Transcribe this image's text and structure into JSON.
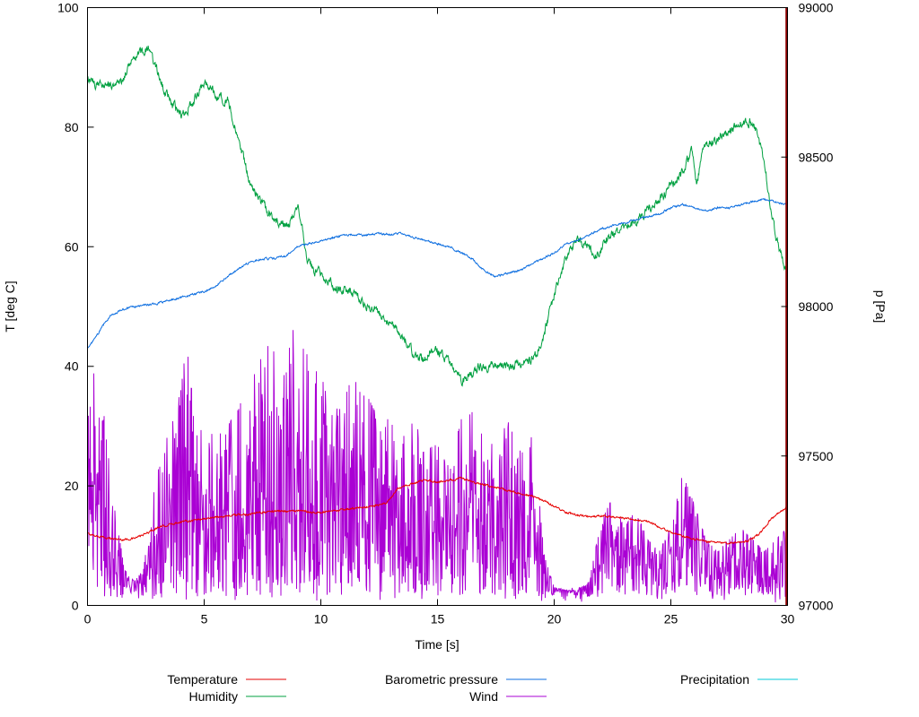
{
  "chart_data": {
    "type": "line",
    "title": "",
    "xlabel": "Time [s]",
    "ylabel_left": "T [deg C]",
    "ylabel_right": "p [Pa]",
    "x_range": [
      0,
      30
    ],
    "y_left_range": [
      0,
      100
    ],
    "y_right_range": [
      97000,
      99000
    ],
    "x_ticks": [
      0,
      5,
      10,
      15,
      20,
      25,
      30
    ],
    "y_left_ticks": [
      0,
      20,
      40,
      60,
      80,
      100
    ],
    "y_right_ticks": [
      97000,
      97500,
      98000,
      98500,
      99000
    ],
    "grid": false,
    "legend_position": "bottom",
    "event_line": {
      "x": 29.95,
      "color": "#8b0000"
    },
    "series": [
      {
        "name": "Temperature",
        "color": "#e60000",
        "axis": "left",
        "style": "line",
        "noise": 0.3,
        "anchors": [
          [
            0,
            12
          ],
          [
            0.5,
            11.5
          ],
          [
            1,
            11.2
          ],
          [
            1.5,
            11
          ],
          [
            2,
            11.2
          ],
          [
            2.5,
            12
          ],
          [
            3,
            13
          ],
          [
            3.5,
            13.5
          ],
          [
            4,
            14
          ],
          [
            5,
            14.5
          ],
          [
            6,
            15
          ],
          [
            7,
            15.3
          ],
          [
            8,
            15.8
          ],
          [
            9,
            15.8
          ],
          [
            10,
            15.5
          ],
          [
            11,
            16
          ],
          [
            12,
            16.5
          ],
          [
            12.8,
            17
          ],
          [
            13.3,
            19.5
          ],
          [
            14,
            20.5
          ],
          [
            14.5,
            21
          ],
          [
            15,
            20.6
          ],
          [
            15.6,
            21
          ],
          [
            16,
            21.3
          ],
          [
            16.5,
            20.6
          ],
          [
            17,
            20.2
          ],
          [
            17.5,
            19.7
          ],
          [
            18,
            19.2
          ],
          [
            18.5,
            18.8
          ],
          [
            19,
            18.3
          ],
          [
            19.5,
            17.6
          ],
          [
            20,
            16.6
          ],
          [
            20.5,
            15.6
          ],
          [
            21,
            15.1
          ],
          [
            21.5,
            14.8
          ],
          [
            22,
            15
          ],
          [
            23,
            14.6
          ],
          [
            24,
            14
          ],
          [
            24.5,
            13.2
          ],
          [
            25,
            12.2
          ],
          [
            25.5,
            11.6
          ],
          [
            26,
            11.1
          ],
          [
            26.5,
            10.7
          ],
          [
            27,
            10.5
          ],
          [
            27.8,
            10.5
          ],
          [
            28.3,
            10.8
          ],
          [
            28.8,
            12
          ],
          [
            29.2,
            14
          ],
          [
            29.6,
            15.5
          ],
          [
            30,
            16.5
          ]
        ]
      },
      {
        "name": "Humidity",
        "color": "#00a040",
        "axis": "left",
        "style": "line",
        "noise": 1.4,
        "anchors": [
          [
            0,
            88
          ],
          [
            0.4,
            87
          ],
          [
            0.8,
            87.5
          ],
          [
            1.2,
            87
          ],
          [
            1.6,
            88.5
          ],
          [
            1.9,
            92
          ],
          [
            2.3,
            92.5
          ],
          [
            2.6,
            93
          ],
          [
            2.9,
            90.5
          ],
          [
            3.2,
            87
          ],
          [
            3.6,
            84
          ],
          [
            4,
            82
          ],
          [
            4.4,
            83.5
          ],
          [
            4.8,
            86
          ],
          [
            5,
            87.5
          ],
          [
            5.3,
            86.5
          ],
          [
            5.6,
            85
          ],
          [
            6,
            84.5
          ],
          [
            6.3,
            80
          ],
          [
            6.6,
            76
          ],
          [
            7,
            70
          ],
          [
            7.4,
            67.5
          ],
          [
            7.8,
            65.5
          ],
          [
            8.2,
            64
          ],
          [
            8.6,
            63.5
          ],
          [
            9,
            67
          ],
          [
            9.2,
            64
          ],
          [
            9.4,
            58
          ],
          [
            9.7,
            56
          ],
          [
            10,
            55.5
          ],
          [
            10.4,
            54
          ],
          [
            10.8,
            52.5
          ],
          [
            11.2,
            53
          ],
          [
            11.6,
            51.5
          ],
          [
            12,
            50
          ],
          [
            12.4,
            49.5
          ],
          [
            12.8,
            47.5
          ],
          [
            13.2,
            46.5
          ],
          [
            13.6,
            44.5
          ],
          [
            14,
            42
          ],
          [
            14.4,
            41
          ],
          [
            14.8,
            43
          ],
          [
            15.2,
            42
          ],
          [
            15.6,
            40.5
          ],
          [
            16,
            37.5
          ],
          [
            16.4,
            38.5
          ],
          [
            16.8,
            40
          ],
          [
            17.4,
            40
          ],
          [
            18,
            40
          ],
          [
            18.6,
            40.5
          ],
          [
            19,
            41
          ],
          [
            19.4,
            43
          ],
          [
            19.8,
            49
          ],
          [
            20.2,
            55
          ],
          [
            20.6,
            59
          ],
          [
            21,
            61.5
          ],
          [
            21.4,
            60
          ],
          [
            21.8,
            58.5
          ],
          [
            22.2,
            61
          ],
          [
            22.6,
            62.5
          ],
          [
            23,
            63
          ],
          [
            23.5,
            64
          ],
          [
            24,
            66
          ],
          [
            24.5,
            68
          ],
          [
            25,
            70
          ],
          [
            25.5,
            72.5
          ],
          [
            25.9,
            76
          ],
          [
            26.1,
            70
          ],
          [
            26.4,
            76.5
          ],
          [
            26.8,
            77.5
          ],
          [
            27.2,
            78.5
          ],
          [
            27.6,
            79.5
          ],
          [
            28,
            80.5
          ],
          [
            28.4,
            81
          ],
          [
            28.7,
            79
          ],
          [
            29,
            74
          ],
          [
            29.3,
            66
          ],
          [
            29.6,
            60
          ],
          [
            30,
            55.5
          ]
        ]
      },
      {
        "name": "Barometric pressure",
        "color": "#0d6ee0",
        "axis": "right",
        "style": "line",
        "noise": 6,
        "anchors": [
          [
            0,
            97860
          ],
          [
            0.3,
            97890
          ],
          [
            0.7,
            97940
          ],
          [
            1,
            97970
          ],
          [
            1.5,
            97990
          ],
          [
            2,
            98000
          ],
          [
            3,
            98010
          ],
          [
            4,
            98030
          ],
          [
            5,
            98050
          ],
          [
            5.5,
            98070
          ],
          [
            6,
            98100
          ],
          [
            6.5,
            98130
          ],
          [
            7,
            98150
          ],
          [
            7.5,
            98160
          ],
          [
            8,
            98160
          ],
          [
            8.5,
            98170
          ],
          [
            9,
            98200
          ],
          [
            9.5,
            98210
          ],
          [
            10,
            98220
          ],
          [
            10.5,
            98230
          ],
          [
            11,
            98240
          ],
          [
            12,
            98240
          ],
          [
            12.5,
            98245
          ],
          [
            13,
            98240
          ],
          [
            13.5,
            98245
          ],
          [
            14,
            98230
          ],
          [
            14.5,
            98220
          ],
          [
            15,
            98210
          ],
          [
            15.5,
            98200
          ],
          [
            16,
            98180
          ],
          [
            16.5,
            98160
          ],
          [
            17,
            98120
          ],
          [
            17.5,
            98100
          ],
          [
            18,
            98110
          ],
          [
            18.5,
            98120
          ],
          [
            19,
            98140
          ],
          [
            19.5,
            98160
          ],
          [
            20,
            98180
          ],
          [
            20.5,
            98210
          ],
          [
            21,
            98220
          ],
          [
            21.5,
            98240
          ],
          [
            22,
            98260
          ],
          [
            22.5,
            98270
          ],
          [
            23,
            98280
          ],
          [
            23.5,
            98290
          ],
          [
            24,
            98300
          ],
          [
            24.5,
            98310
          ],
          [
            25,
            98330
          ],
          [
            25.5,
            98340
          ],
          [
            26,
            98330
          ],
          [
            26.5,
            98320
          ],
          [
            27,
            98330
          ],
          [
            27.5,
            98330
          ],
          [
            28,
            98340
          ],
          [
            28.5,
            98350
          ],
          [
            29,
            98360
          ],
          [
            29.5,
            98350
          ],
          [
            30,
            98340
          ]
        ]
      },
      {
        "name": "Wind",
        "color": "#aa00d4",
        "axis": "left",
        "style": "spikes",
        "noise": 0,
        "anchors": [
          [
            0,
            30
          ],
          [
            0.4,
            48
          ],
          [
            0.8,
            28
          ],
          [
            1.2,
            15
          ],
          [
            1.6,
            6
          ],
          [
            2,
            4
          ],
          [
            2.4,
            6
          ],
          [
            2.8,
            18
          ],
          [
            3.2,
            26
          ],
          [
            3.6,
            30
          ],
          [
            4,
            36
          ],
          [
            4.3,
            46
          ],
          [
            4.6,
            28
          ],
          [
            5,
            30
          ],
          [
            5.5,
            28
          ],
          [
            6,
            30
          ],
          [
            6.5,
            33
          ],
          [
            7,
            40
          ],
          [
            7.5,
            42
          ],
          [
            8,
            45
          ],
          [
            8.5,
            48
          ],
          [
            9,
            47
          ],
          [
            9.5,
            41
          ],
          [
            10,
            38
          ],
          [
            10.5,
            42
          ],
          [
            11,
            36
          ],
          [
            11.5,
            38
          ],
          [
            12,
            35
          ],
          [
            12.5,
            31
          ],
          [
            13,
            33
          ],
          [
            13.5,
            28
          ],
          [
            14,
            31
          ],
          [
            14.5,
            26
          ],
          [
            15,
            27
          ],
          [
            15.5,
            23
          ],
          [
            16,
            31
          ],
          [
            16.5,
            35
          ],
          [
            17,
            29
          ],
          [
            17.5,
            26
          ],
          [
            18,
            31
          ],
          [
            18.5,
            26
          ],
          [
            19,
            29
          ],
          [
            19.3,
            20
          ],
          [
            19.6,
            8
          ],
          [
            20,
            3
          ],
          [
            20.5,
            2.5
          ],
          [
            21,
            2.5
          ],
          [
            21.5,
            4
          ],
          [
            22,
            14
          ],
          [
            22.5,
            18
          ],
          [
            23,
            13
          ],
          [
            23.5,
            16
          ],
          [
            24,
            11
          ],
          [
            24.5,
            9
          ],
          [
            25,
            13
          ],
          [
            25.5,
            22
          ],
          [
            26,
            17
          ],
          [
            26.5,
            11
          ],
          [
            27,
            9
          ],
          [
            27.5,
            11
          ],
          [
            28,
            13
          ],
          [
            28.5,
            11
          ],
          [
            29,
            9
          ],
          [
            29.5,
            11
          ],
          [
            30,
            13
          ]
        ]
      },
      {
        "name": "Precipitation",
        "color": "#00c8d7",
        "axis": "left",
        "style": "line",
        "noise": 0,
        "anchors": [
          [
            0,
            0
          ],
          [
            30,
            0
          ]
        ]
      }
    ]
  }
}
